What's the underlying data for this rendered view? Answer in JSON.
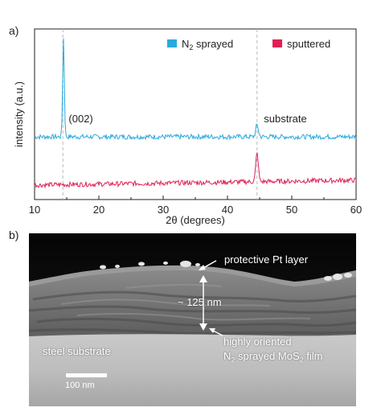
{
  "figure": {
    "panel_a_label": "a)",
    "panel_b_label": "b)"
  },
  "chart_data": {
    "type": "line",
    "title": "",
    "xlabel": "2θ (degrees)",
    "ylabel": "intensity (a.u.)",
    "xlim": [
      10,
      60
    ],
    "xticks": [
      10,
      20,
      30,
      40,
      50,
      60
    ],
    "y_ticks_shown": false,
    "grid": false,
    "legend_placement": "top-right",
    "reference_lines": [
      {
        "x": 14.4,
        "style": "dashed",
        "color": "#b8b8b8"
      },
      {
        "x": 44.6,
        "style": "dashed",
        "color": "#b8b8b8"
      }
    ],
    "annotations": [
      {
        "text": "(002)",
        "x": 17.2,
        "series": "N2 sprayed"
      },
      {
        "text": "substrate",
        "x": 49.0,
        "series": "N2 sprayed"
      }
    ],
    "series": [
      {
        "name": "N2 sprayed",
        "legend_label": "N",
        "legend_subscript": "2",
        "legend_suffix": " sprayed",
        "color": "#29a9e0",
        "baseline_level": 0.0,
        "noise_amplitude": 0.025,
        "slope": 0.0,
        "peaks": [
          {
            "x": 14.5,
            "height": 1.0,
            "width": 0.13
          },
          {
            "x": 44.6,
            "height": 0.12,
            "width": 0.2
          }
        ]
      },
      {
        "name": "sputtered",
        "legend_label": "sputtered",
        "color": "#e01f55",
        "baseline_level": -0.47,
        "noise_amplitude": 0.025,
        "slope": 0.05,
        "peaks": [
          {
            "x": 44.6,
            "height": 0.29,
            "width": 0.2
          }
        ]
      }
    ]
  },
  "tem": {
    "labels": {
      "pt_layer": "protective Pt layer",
      "thickness": "~ 125 nm",
      "film_line1": "highly oriented",
      "film_line2_prefix": "N",
      "film_line2_sub1": "2",
      "film_line2_mid": " sprayed MoS",
      "film_line2_sub2": "2",
      "film_line2_suffix": " film",
      "substrate": "steel substrate",
      "scale": "100 nm"
    }
  }
}
